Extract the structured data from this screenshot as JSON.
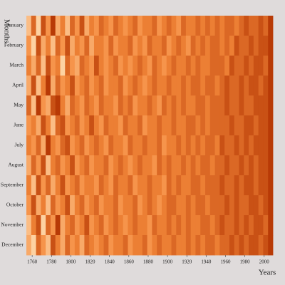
{
  "chart_data": {
    "type": "heatmap",
    "x_label": "Years",
    "y_label": "Months",
    "categories": [
      "January",
      "February",
      "March",
      "April",
      "May",
      "June",
      "July",
      "August",
      "September",
      "October",
      "November",
      "December"
    ],
    "bins": [
      1754,
      1759,
      1764,
      1769,
      1774,
      1779,
      1784,
      1789,
      1794,
      1799,
      1804,
      1809,
      1814,
      1819,
      1824,
      1829,
      1834,
      1839,
      1844,
      1849,
      1854,
      1859,
      1864,
      1869,
      1874,
      1879,
      1884,
      1889,
      1894,
      1899,
      1904,
      1909,
      1914,
      1919,
      1924,
      1929,
      1934,
      1939,
      1944,
      1949,
      1954,
      1959,
      1964,
      1969,
      1974,
      1979,
      1984,
      1989,
      1994,
      1999,
      2004,
      2009
    ],
    "values": [
      [
        3,
        7,
        2,
        8,
        5,
        9,
        4,
        6,
        3,
        7,
        5,
        8,
        4,
        6,
        5,
        7,
        6,
        5,
        7,
        6,
        5,
        6,
        7,
        5,
        6,
        6,
        7,
        5,
        6,
        7,
        6,
        5,
        7,
        6,
        6,
        7,
        6,
        7,
        6,
        7,
        6,
        7,
        7,
        6,
        7,
        8,
        7,
        7,
        8,
        7,
        9
      ],
      [
        5,
        2,
        8,
        4,
        6,
        3,
        7,
        5,
        8,
        4,
        6,
        5,
        7,
        4,
        6,
        6,
        5,
        7,
        5,
        6,
        6,
        7,
        5,
        6,
        5,
        7,
        6,
        6,
        7,
        5,
        6,
        7,
        6,
        5,
        7,
        6,
        7,
        6,
        7,
        7,
        6,
        7,
        6,
        8,
        7,
        7,
        8,
        7,
        8,
        8,
        9
      ],
      [
        6,
        4,
        7,
        3,
        8,
        5,
        6,
        2,
        7,
        5,
        4,
        7,
        6,
        5,
        8,
        6,
        5,
        6,
        7,
        5,
        6,
        5,
        6,
        7,
        6,
        5,
        7,
        6,
        5,
        6,
        7,
        6,
        6,
        7,
        6,
        7,
        6,
        6,
        7,
        7,
        7,
        6,
        8,
        7,
        7,
        8,
        7,
        8,
        8,
        7,
        9
      ],
      [
        4,
        8,
        3,
        6,
        9,
        4,
        7,
        5,
        6,
        8,
        5,
        6,
        7,
        5,
        6,
        7,
        5,
        6,
        6,
        7,
        5,
        6,
        7,
        6,
        5,
        6,
        7,
        6,
        6,
        7,
        6,
        6,
        7,
        6,
        7,
        7,
        6,
        7,
        7,
        6,
        7,
        8,
        7,
        7,
        8,
        7,
        8,
        8,
        7,
        8,
        9
      ],
      [
        7,
        3,
        9,
        5,
        4,
        8,
        9,
        6,
        4,
        7,
        6,
        5,
        7,
        6,
        5,
        7,
        6,
        6,
        5,
        7,
        6,
        7,
        5,
        6,
        6,
        7,
        6,
        5,
        7,
        6,
        7,
        6,
        7,
        6,
        6,
        7,
        7,
        6,
        7,
        7,
        7,
        8,
        7,
        7,
        8,
        7,
        7,
        8,
        8,
        8,
        9
      ],
      [
        5,
        6,
        4,
        8,
        6,
        3,
        7,
        8,
        5,
        6,
        7,
        5,
        6,
        8,
        6,
        5,
        7,
        6,
        6,
        5,
        7,
        6,
        6,
        7,
        5,
        6,
        6,
        7,
        6,
        6,
        7,
        6,
        6,
        7,
        7,
        6,
        7,
        6,
        7,
        7,
        7,
        7,
        8,
        7,
        7,
        8,
        8,
        7,
        8,
        8,
        9
      ],
      [
        6,
        5,
        7,
        4,
        9,
        6,
        5,
        7,
        8,
        5,
        6,
        7,
        5,
        6,
        7,
        6,
        5,
        7,
        6,
        6,
        5,
        7,
        6,
        6,
        7,
        6,
        6,
        7,
        5,
        6,
        6,
        7,
        6,
        7,
        6,
        7,
        6,
        7,
        7,
        6,
        8,
        7,
        7,
        8,
        7,
        8,
        7,
        8,
        8,
        8,
        9
      ],
      [
        4,
        7,
        5,
        8,
        3,
        6,
        7,
        5,
        6,
        8,
        5,
        6,
        7,
        5,
        6,
        6,
        7,
        5,
        6,
        7,
        6,
        5,
        6,
        7,
        6,
        6,
        5,
        7,
        6,
        7,
        6,
        6,
        7,
        6,
        7,
        6,
        7,
        7,
        6,
        7,
        7,
        8,
        7,
        7,
        8,
        7,
        8,
        7,
        8,
        8,
        9
      ],
      [
        6,
        3,
        8,
        5,
        7,
        4,
        6,
        8,
        5,
        6,
        7,
        5,
        6,
        6,
        5,
        7,
        6,
        5,
        7,
        6,
        6,
        7,
        5,
        6,
        6,
        7,
        6,
        6,
        5,
        7,
        6,
        7,
        6,
        6,
        7,
        7,
        6,
        7,
        7,
        7,
        8,
        7,
        7,
        8,
        7,
        8,
        8,
        7,
        8,
        8,
        9
      ],
      [
        5,
        8,
        4,
        6,
        3,
        7,
        5,
        6,
        8,
        4,
        6,
        7,
        5,
        6,
        7,
        5,
        6,
        6,
        7,
        5,
        6,
        6,
        7,
        5,
        6,
        7,
        6,
        5,
        6,
        7,
        7,
        6,
        6,
        7,
        6,
        7,
        7,
        6,
        7,
        7,
        7,
        8,
        7,
        8,
        7,
        7,
        8,
        8,
        7,
        8,
        9
      ],
      [
        3,
        6,
        8,
        2,
        7,
        5,
        9,
        4,
        6,
        7,
        5,
        6,
        8,
        5,
        6,
        7,
        5,
        6,
        7,
        6,
        5,
        6,
        7,
        6,
        6,
        5,
        7,
        6,
        6,
        7,
        6,
        7,
        6,
        7,
        6,
        6,
        7,
        7,
        6,
        7,
        8,
        7,
        7,
        8,
        7,
        8,
        7,
        8,
        8,
        7,
        9
      ],
      [
        4,
        2,
        7,
        5,
        3,
        8,
        6,
        4,
        7,
        5,
        6,
        4,
        7,
        6,
        5,
        6,
        7,
        5,
        6,
        6,
        7,
        5,
        6,
        6,
        7,
        5,
        6,
        7,
        6,
        6,
        7,
        6,
        6,
        7,
        6,
        7,
        6,
        7,
        7,
        6,
        7,
        7,
        8,
        7,
        8,
        7,
        8,
        8,
        7,
        8,
        9
      ]
    ],
    "vlim": [
      2,
      9
    ],
    "colors": [
      "#fdd2a2",
      "#f58a3c",
      "#b83a06"
    ],
    "xlim": [
      1754,
      2009
    ],
    "xticks": [
      1760,
      1780,
      1800,
      1820,
      1840,
      1860,
      1880,
      1900,
      1920,
      1940,
      1960,
      1980,
      2000
    ]
  }
}
